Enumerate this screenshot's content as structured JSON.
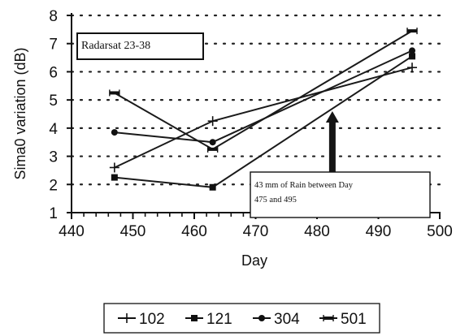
{
  "chart_data": {
    "type": "line",
    "title": "",
    "xlabel": "Day",
    "ylabel": "Sima0 variation (dB)",
    "xlim": [
      440,
      500
    ],
    "ylim": [
      1,
      8
    ],
    "x_ticks": [
      "440",
      "450",
      "460",
      "470",
      "480",
      "490",
      "500"
    ],
    "y_ticks": [
      "1",
      "2",
      "3",
      "4",
      "5",
      "6",
      "7",
      "8"
    ],
    "grid": "horizontal dotted",
    "legend_position": "bottom",
    "series": [
      {
        "name": "102",
        "marker": "plus",
        "x": [
          447,
          463,
          495.5
        ],
        "y": [
          2.6,
          4.25,
          6.15
        ]
      },
      {
        "name": "121",
        "marker": "square",
        "x": [
          447,
          463,
          495.5
        ],
        "y": [
          2.25,
          1.9,
          6.55
        ]
      },
      {
        "name": "304",
        "marker": "circle",
        "x": [
          447,
          463,
          495.5
        ],
        "y": [
          3.85,
          3.5,
          6.75
        ]
      },
      {
        "name": "501",
        "marker": "bar",
        "x": [
          447,
          463,
          495.5
        ],
        "y": [
          5.25,
          3.25,
          7.45
        ]
      }
    ],
    "annotations": {
      "box_label": "Radarsat 23-38",
      "rain_note_line1": "43 mm of Rain between Day",
      "rain_note_line2": "475 and 495",
      "arrow_x": 482.5,
      "arrow_y_top": 4.6
    }
  }
}
